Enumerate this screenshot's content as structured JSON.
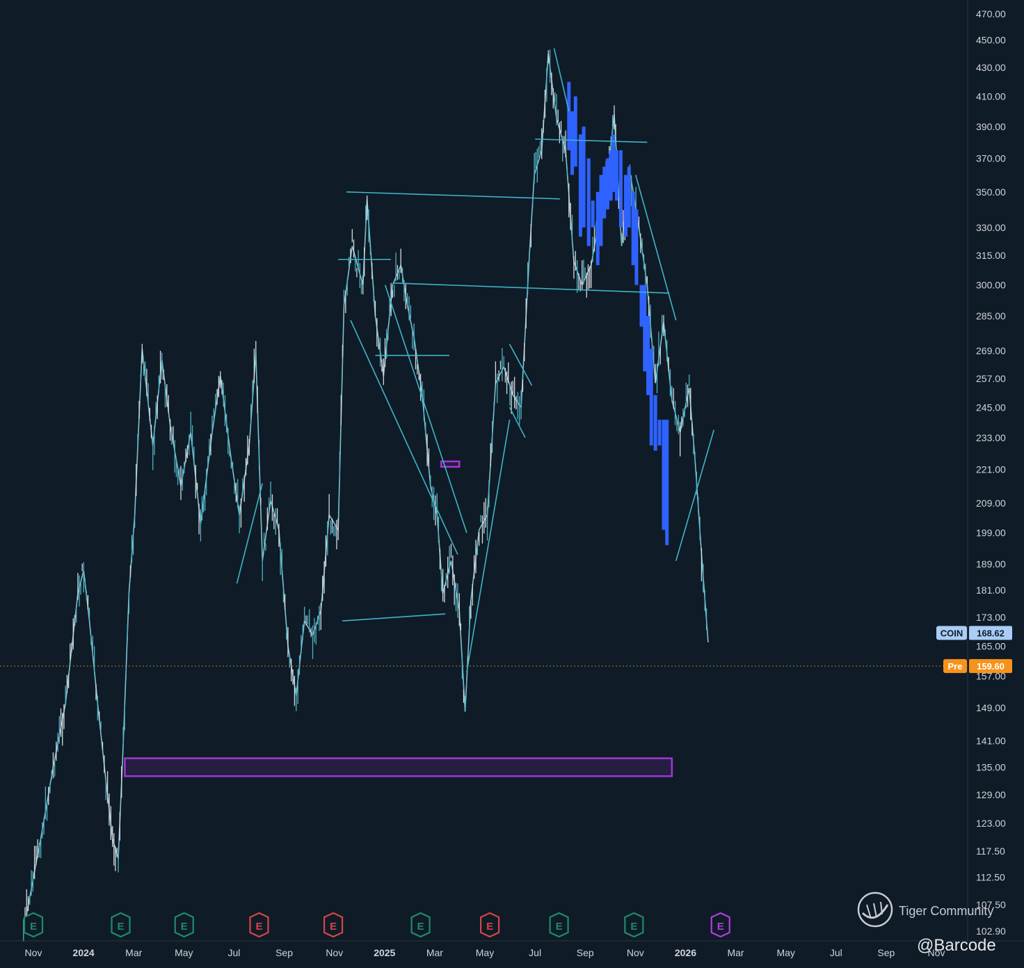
{
  "chart_data": {
    "type": "line",
    "symbol": "COIN",
    "y_scale": "log",
    "ylim": [
      102.9,
      470
    ],
    "y_ticks": [
      "470.00",
      "450.00",
      "430.00",
      "410.00",
      "390.00",
      "370.00",
      "350.00",
      "330.00",
      "315.00",
      "300.00",
      "285.00",
      "269.00",
      "257.00",
      "245.00",
      "233.00",
      "221.00",
      "209.00",
      "199.00",
      "189.00",
      "181.00",
      "173.00",
      "165.00",
      "157.00",
      "149.00",
      "141.00",
      "135.00",
      "129.00",
      "123.00",
      "117.50",
      "112.50",
      "107.50",
      "102.90"
    ],
    "x_ticks": [
      "Nov",
      "2024",
      "Mar",
      "May",
      "Jul",
      "Sep",
      "Nov",
      "2025",
      "Mar",
      "May",
      "Jul",
      "Sep",
      "Nov",
      "2026",
      "Mar",
      "May",
      "Jul",
      "Sep",
      "Nov"
    ],
    "x_ticks_bold": [
      "2024",
      "2025",
      "2026"
    ],
    "x_range": [
      "2023-11",
      "2026-11"
    ],
    "series": [
      {
        "values": [
          [
            "2023-10-20",
            103
          ],
          [
            "2023-11-10",
            120
          ],
          [
            "2023-11-25",
            135
          ],
          [
            "2023-12-10",
            150
          ],
          [
            "2023-12-25",
            180
          ],
          [
            "2024-01-01",
            187
          ],
          [
            "2024-01-08",
            172
          ],
          [
            "2024-01-18",
            150
          ],
          [
            "2024-01-28",
            132
          ],
          [
            "2024-02-05",
            120
          ],
          [
            "2024-02-12",
            116
          ],
          [
            "2024-02-18",
            140
          ],
          [
            "2024-02-25",
            180
          ],
          [
            "2024-03-03",
            205
          ],
          [
            "2024-03-12",
            270
          ],
          [
            "2024-03-25",
            230
          ],
          [
            "2024-04-05",
            265
          ],
          [
            "2024-04-15",
            238
          ],
          [
            "2024-04-28",
            215
          ],
          [
            "2024-05-10",
            235
          ],
          [
            "2024-05-22",
            202
          ],
          [
            "2024-06-05",
            235
          ],
          [
            "2024-06-15",
            258
          ],
          [
            "2024-06-28",
            225
          ],
          [
            "2024-07-08",
            205
          ],
          [
            "2024-07-20",
            230
          ],
          [
            "2024-07-28",
            268
          ],
          [
            "2024-08-05",
            190
          ],
          [
            "2024-08-15",
            210
          ],
          [
            "2024-08-25",
            200
          ],
          [
            "2024-09-05",
            165
          ],
          [
            "2024-09-15",
            152
          ],
          [
            "2024-09-25",
            172
          ],
          [
            "2024-10-05",
            168
          ],
          [
            "2024-10-15",
            175
          ],
          [
            "2024-10-25",
            205
          ],
          [
            "2024-11-05",
            200
          ],
          [
            "2024-11-12",
            290
          ],
          [
            "2024-11-22",
            320
          ],
          [
            "2024-12-05",
            300
          ],
          [
            "2024-12-10",
            346
          ],
          [
            "2024-12-20",
            285
          ],
          [
            "2024-12-30",
            258
          ],
          [
            "2025-01-10",
            300
          ],
          [
            "2025-01-20",
            310
          ],
          [
            "2025-01-28",
            290
          ],
          [
            "2025-02-05",
            275
          ],
          [
            "2025-02-15",
            250
          ],
          [
            "2025-02-25",
            215
          ],
          [
            "2025-03-05",
            205
          ],
          [
            "2025-03-12",
            180
          ],
          [
            "2025-03-22",
            190
          ],
          [
            "2025-04-01",
            175
          ],
          [
            "2025-04-08",
            148
          ],
          [
            "2025-04-15",
            178
          ],
          [
            "2025-04-25",
            200
          ],
          [
            "2025-05-05",
            205
          ],
          [
            "2025-05-15",
            255
          ],
          [
            "2025-05-25",
            262
          ],
          [
            "2025-06-05",
            250
          ],
          [
            "2025-06-15",
            245
          ],
          [
            "2025-06-25",
            315
          ],
          [
            "2025-07-01",
            360
          ],
          [
            "2025-07-10",
            375
          ],
          [
            "2025-07-18",
            440
          ],
          [
            "2025-07-28",
            395
          ],
          [
            "2025-08-08",
            375
          ],
          [
            "2025-08-18",
            312
          ],
          [
            "2025-08-28",
            300
          ],
          [
            "2025-09-08",
            310
          ],
          [
            "2025-09-18",
            335
          ],
          [
            "2025-09-28",
            360
          ],
          [
            "2025-10-06",
            398
          ],
          [
            "2025-10-15",
            320
          ],
          [
            "2025-10-25",
            362
          ],
          [
            "2025-11-05",
            330
          ],
          [
            "2025-11-15",
            300
          ],
          [
            "2025-11-25",
            255
          ],
          [
            "2025-12-05",
            282
          ],
          [
            "2025-12-15",
            248
          ],
          [
            "2025-12-25",
            235
          ],
          [
            "2026-01-05",
            253
          ],
          [
            "2026-01-12",
            225
          ],
          [
            "2026-01-20",
            192
          ],
          [
            "2026-01-28",
            166
          ]
        ]
      }
    ],
    "price_labels": [
      {
        "label": "COIN",
        "value": "168.62",
        "color": "#a9cdf5"
      },
      {
        "label": "Pre",
        "value": "159.60",
        "color": "#f7931a"
      }
    ],
    "earnings_markers": [
      {
        "date": "2023-11-01",
        "label": "E",
        "color": "#1e8b6b"
      },
      {
        "date": "2024-02-15",
        "label": "E",
        "color": "#1e8b6b"
      },
      {
        "date": "2024-05-02",
        "label": "E",
        "color": "#1e8b6b"
      },
      {
        "date": "2024-08-01",
        "label": "E",
        "color": "#d64545"
      },
      {
        "date": "2024-10-30",
        "label": "E",
        "color": "#d64545"
      },
      {
        "date": "2025-02-13",
        "label": "E",
        "color": "#1e8b6b"
      },
      {
        "date": "2025-05-08",
        "label": "E",
        "color": "#d64545"
      },
      {
        "date": "2025-07-31",
        "label": "E",
        "color": "#1e8b6b"
      },
      {
        "date": "2025-10-30",
        "label": "E",
        "color": "#1e8b6b"
      },
      {
        "date": "2026-02-12",
        "label": "E",
        "color": "#b03de0"
      }
    ],
    "drawings": {
      "horizontal_lines": [
        {
          "from": "2024-11-15",
          "to": "2025-08-01",
          "y_from": 350,
          "y_to": 346
        },
        {
          "from": "2025-07-02",
          "to": "2025-11-15",
          "y_from": 382,
          "y_to": 380
        },
        {
          "from": "2025-01-10",
          "to": "2025-12-12",
          "y_from": 301,
          "y_to": 296
        },
        {
          "from": "2024-11-10",
          "to": "2025-03-15",
          "y_from": 172,
          "y_to": 174
        },
        {
          "from": "2024-12-20",
          "to": "2025-03-20",
          "y_from": 267,
          "y_to": 267
        },
        {
          "from": "2024-11-05",
          "to": "2025-01-08",
          "y_from": 313,
          "y_to": 313
        }
      ],
      "trend_lines": [
        {
          "from": "2024-11-20",
          "to": "2025-03-30",
          "y_from": 283,
          "y_to": 192
        },
        {
          "from": "2025-01-01",
          "to": "2025-04-10",
          "y_from": 300,
          "y_to": 199
        },
        {
          "from": "2025-04-10",
          "to": "2025-06-01",
          "y_from": 158,
          "y_to": 240
        },
        {
          "from": "2025-06-01",
          "to": "2025-06-28",
          "y_from": 272,
          "y_to": 254
        },
        {
          "from": "2025-06-01",
          "to": "2025-06-20",
          "y_from": 245,
          "y_to": 233
        },
        {
          "from": "2025-07-25",
          "to": "2025-08-12",
          "y_from": 444,
          "y_to": 400
        },
        {
          "from": "2025-11-01",
          "to": "2025-12-20",
          "y_from": 360,
          "y_to": 283
        },
        {
          "from": "2025-12-20",
          "to": "2026-02-04",
          "y_from": 190,
          "y_to": 236
        },
        {
          "from": "2024-07-05",
          "to": "2024-08-05",
          "y_from": 183,
          "y_to": 216
        }
      ],
      "zones": [
        {
          "from": "2024-02-20",
          "to": "2025-12-15",
          "y_low": 133,
          "y_high": 137,
          "color": "#a336d8"
        },
        {
          "from": "2025-03-10",
          "to": "2025-04-01",
          "y_low": 222,
          "y_high": 224,
          "color": "#a336d8"
        }
      ],
      "highlight_bars": [
        [
          "2025-08-12",
          375,
          420
        ],
        [
          "2025-08-16",
          360,
          400
        ],
        [
          "2025-08-20",
          365,
          410
        ],
        [
          "2025-08-26",
          325,
          385
        ],
        [
          "2025-08-30",
          330,
          390
        ],
        [
          "2025-09-05",
          320,
          370
        ],
        [
          "2025-09-10",
          330,
          345
        ],
        [
          "2025-09-16",
          310,
          350
        ],
        [
          "2025-09-20",
          320,
          360
        ],
        [
          "2025-09-24",
          335,
          365
        ],
        [
          "2025-09-28",
          340,
          370
        ],
        [
          "2025-10-02",
          345,
          375
        ],
        [
          "2025-10-05",
          350,
          385
        ],
        [
          "2025-10-09",
          345,
          375
        ],
        [
          "2025-10-14",
          330,
          375
        ],
        [
          "2025-10-20",
          325,
          360
        ],
        [
          "2025-10-24",
          330,
          365
        ],
        [
          "2025-10-29",
          310,
          350
        ],
        [
          "2025-11-02",
          300,
          340
        ],
        [
          "2025-11-08",
          280,
          300
        ],
        [
          "2025-11-12",
          260,
          300
        ],
        [
          "2025-11-16",
          250,
          285
        ],
        [
          "2025-11-20",
          230,
          270
        ],
        [
          "2025-11-25",
          228,
          250
        ],
        [
          "2025-11-30",
          230,
          240
        ],
        [
          "2025-12-05",
          200,
          240
        ],
        [
          "2025-12-09",
          195,
          240
        ]
      ]
    },
    "watermark": "Tiger Community",
    "handle": "@Barcode"
  }
}
